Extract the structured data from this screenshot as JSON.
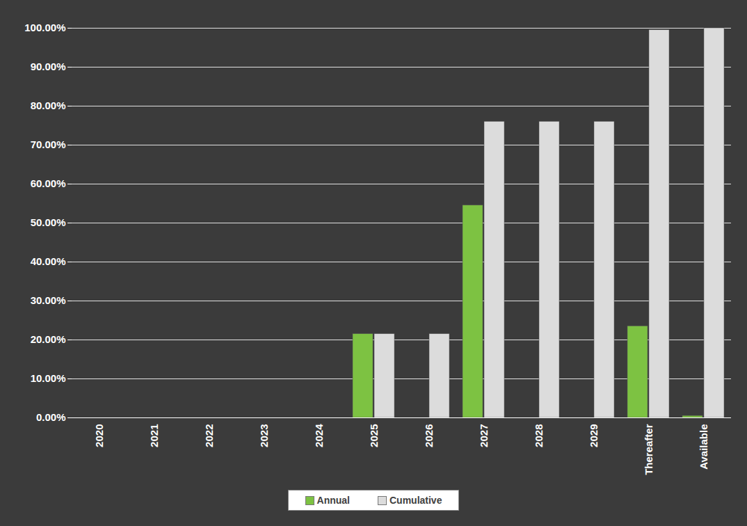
{
  "chart_data": {
    "type": "bar",
    "categories": [
      "2020",
      "2021",
      "2022",
      "2023",
      "2024",
      "2025",
      "2026",
      "2027",
      "2028",
      "2029",
      "Thereafter",
      "Available"
    ],
    "series": [
      {
        "name": "Annual",
        "color": "#7dc242",
        "values": [
          0,
          0,
          0,
          0,
          0,
          21.5,
          0,
          54.5,
          0,
          0,
          23.5,
          0.5
        ]
      },
      {
        "name": "Cumulative",
        "color": "#dcdcdc",
        "values": [
          0,
          0,
          0,
          0,
          0,
          21.5,
          21.5,
          76,
          76,
          76,
          99.5,
          100
        ]
      }
    ],
    "ylim": [
      0,
      100
    ],
    "yticks": [
      {
        "value": 0,
        "label": "0.00%"
      },
      {
        "value": 10,
        "label": "10.00%"
      },
      {
        "value": 20,
        "label": "20.00%"
      },
      {
        "value": 30,
        "label": "30.00%"
      },
      {
        "value": 40,
        "label": "40.00%"
      },
      {
        "value": 50,
        "label": "50.00%"
      },
      {
        "value": 60,
        "label": "60.00%"
      },
      {
        "value": 70,
        "label": "70.00%"
      },
      {
        "value": 80,
        "label": "80.00%"
      },
      {
        "value": 90,
        "label": "90.00%"
      },
      {
        "value": 100,
        "label": "100.00%"
      }
    ],
    "grid": true,
    "legend": "bottom"
  }
}
